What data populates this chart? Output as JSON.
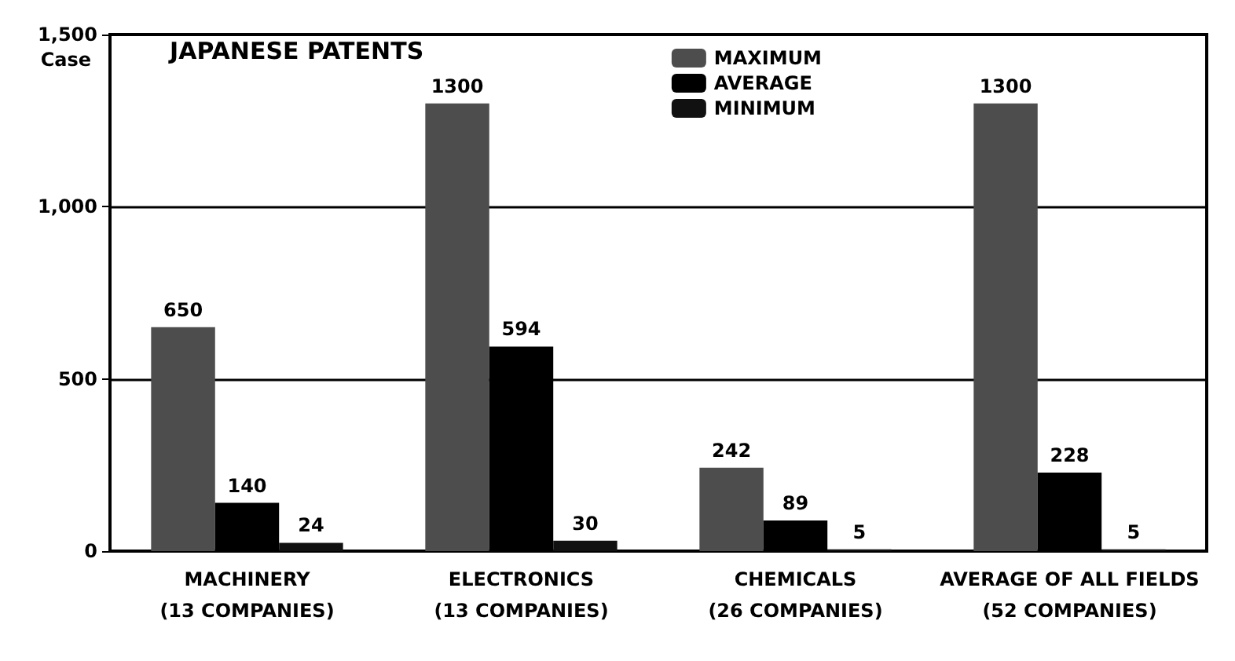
{
  "chart_data": {
    "type": "bar",
    "title": "JAPANESE PATENTS",
    "ylabel": "Case",
    "categories": [
      "MACHINERY\n(13 COMPANIES)",
      "ELECTRONICS\n(13 COMPANIES)",
      "CHEMICALS\n(26 COMPANIES)",
      "AVERAGE OF ALL FIELDS\n(52 COMPANIES)"
    ],
    "series": [
      {
        "name": "MAXIMUM",
        "color": "#4d4d4d",
        "values": [
          650,
          1300,
          242,
          1300
        ]
      },
      {
        "name": "AVERAGE",
        "color": "#000000",
        "values": [
          140,
          594,
          89,
          228
        ]
      },
      {
        "name": "MINIMUM",
        "color": "#111111",
        "values": [
          24,
          30,
          5,
          5
        ]
      }
    ],
    "ylim": [
      0,
      1500
    ],
    "yticks": [
      0,
      500,
      {
        "value": 1000,
        "label": "1,000"
      },
      {
        "value": 1500,
        "label": "1,500"
      }
    ],
    "grid": "y",
    "legend": "top right",
    "data_labels": true
  }
}
